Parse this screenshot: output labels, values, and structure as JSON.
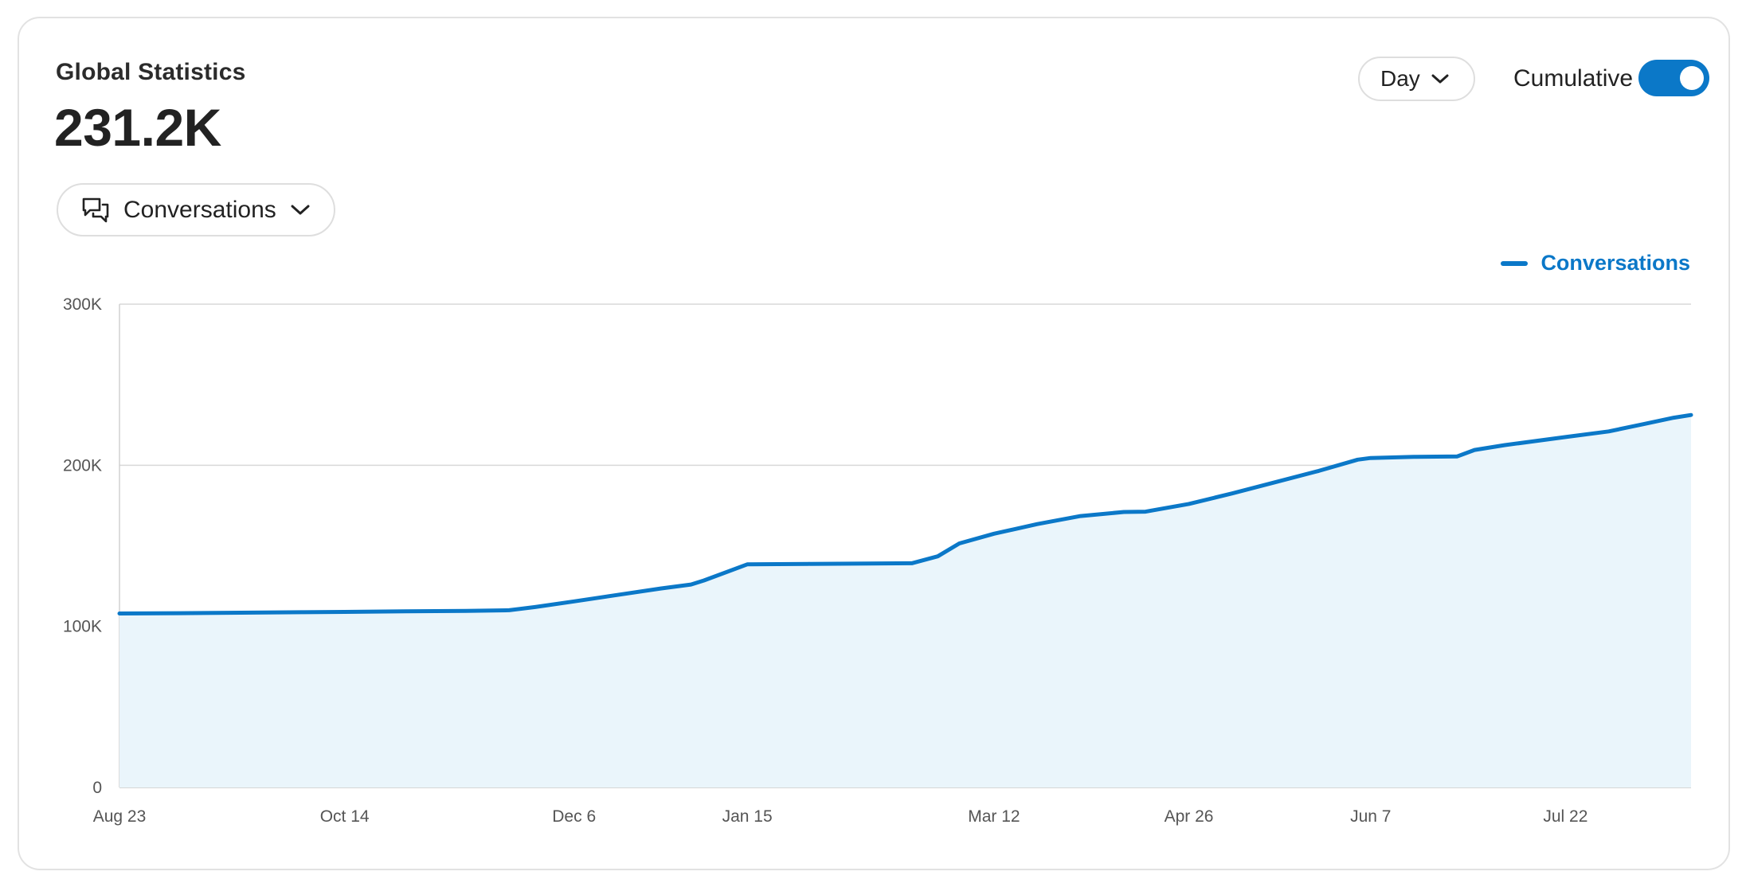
{
  "header": {
    "title": "Global Statistics",
    "total": "231.2K"
  },
  "metric_select": {
    "label": "Conversations",
    "icon": "chat-bubbles-icon"
  },
  "period_select": {
    "label": "Day",
    "icon": "chevron-down-icon"
  },
  "cumulative": {
    "label": "Cumulative",
    "enabled": true
  },
  "colors": {
    "accent": "#0b78c8",
    "area_fill": "#eaf5fb",
    "grid": "#d9d9d9"
  },
  "chart_data": {
    "type": "area",
    "series": [
      {
        "name": "Conversations",
        "x": [
          "Aug 23",
          "Sep 6",
          "Sep 20",
          "Oct 4",
          "Oct 14",
          "Oct 28",
          "Nov 11",
          "Nov 21",
          "Nov 27",
          "Dec 6",
          "Dec 16",
          "Dec 26",
          "Jan 2",
          "Jan 5",
          "Jan 15",
          "Jan 29",
          "Feb 12",
          "Feb 22",
          "Feb 28",
          "Mar 4",
          "Mar 12",
          "Mar 22",
          "Apr 1",
          "Apr 11",
          "Apr 16",
          "Apr 26",
          "May 6",
          "May 16",
          "May 26",
          "Jun 4",
          "Jun 7",
          "Jun 17",
          "Jun 27",
          "Jul 1",
          "Jul 8",
          "Jul 22",
          "Aug 1",
          "Aug 9",
          "Aug 16",
          "Aug 20"
        ],
        "values": [
          108000,
          108200,
          108500,
          108800,
          109000,
          109300,
          109600,
          110000,
          112000,
          115500,
          119500,
          123500,
          126000,
          128500,
          138500,
          138800,
          139000,
          139200,
          143500,
          151500,
          157500,
          163500,
          168500,
          171000,
          171200,
          176000,
          182500,
          189500,
          196500,
          203500,
          204500,
          205200,
          205500,
          209500,
          212500,
          217500,
          221000,
          225500,
          229500,
          231200
        ]
      }
    ],
    "ylim": [
      0,
      300000
    ],
    "y_ticks": [
      0,
      100000,
      200000,
      300000
    ],
    "y_tick_labels": [
      "0",
      "100K",
      "200K",
      "300K"
    ],
    "x_ticks": [
      "Aug 23",
      "Oct 14",
      "Dec 6",
      "Jan 15",
      "Mar 12",
      "Apr 26",
      "Jun 7",
      "Jul 22"
    ],
    "legend": "top-right",
    "grid": true
  }
}
